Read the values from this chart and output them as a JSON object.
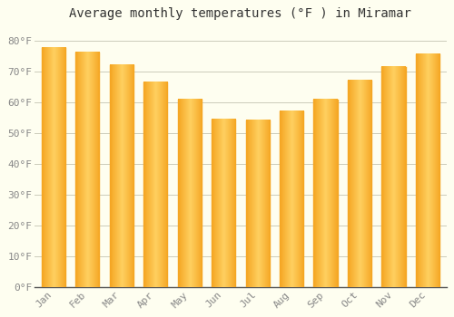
{
  "title": "Average monthly temperatures (°F ) in Miramar",
  "months": [
    "Jan",
    "Feb",
    "Mar",
    "Apr",
    "May",
    "Jun",
    "Jul",
    "Aug",
    "Sep",
    "Oct",
    "Nov",
    "Dec"
  ],
  "values": [
    77.5,
    76.0,
    72.0,
    66.5,
    61.0,
    54.5,
    54.0,
    57.0,
    61.0,
    67.0,
    71.5,
    75.5
  ],
  "bar_color_outer": "#F5A623",
  "bar_color_inner": "#FFD060",
  "background_color": "#FEFEF0",
  "grid_color": "#CCCCBB",
  "yticks": [
    0,
    10,
    20,
    30,
    40,
    50,
    60,
    70,
    80
  ],
  "ylim": [
    0,
    85
  ],
  "title_fontsize": 10,
  "tick_fontsize": 8,
  "tick_color": "#888888",
  "axis_color": "#333333",
  "font_family": "monospace",
  "bar_width": 0.7
}
